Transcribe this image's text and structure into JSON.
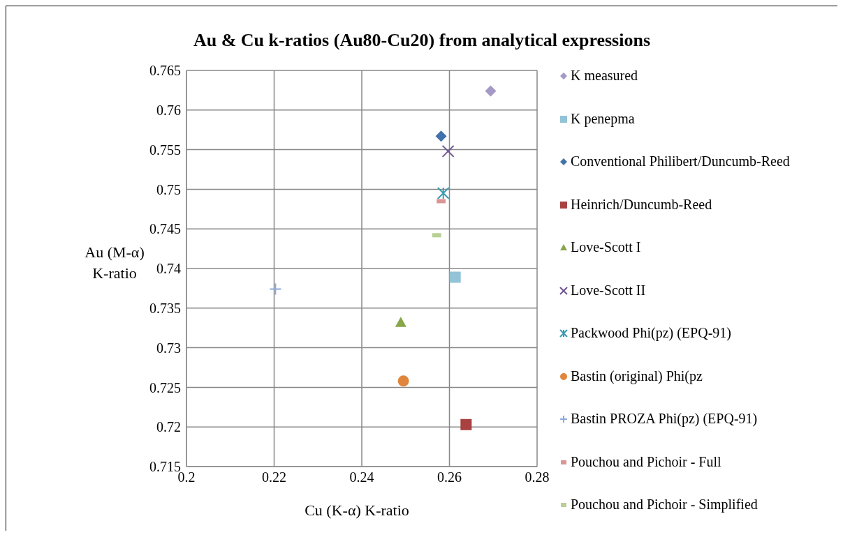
{
  "chart_data": {
    "type": "scatter",
    "title": "Au & Cu k-ratios (Au80-Cu20) from analytical expressions",
    "xlabel": "Cu (K-α) K-ratio",
    "ylabel": "Au (M-α) K-ratio",
    "xlim": [
      0.2,
      0.28
    ],
    "xticks": [
      0.2,
      0.22,
      0.24,
      0.26,
      0.28
    ],
    "ylim": [
      0.715,
      0.765
    ],
    "yticks": [
      0.715,
      0.72,
      0.725,
      0.73,
      0.735,
      0.74,
      0.745,
      0.75,
      0.755,
      0.76,
      0.765
    ],
    "grid": true,
    "legend": "right",
    "series": [
      {
        "name": "K measured",
        "color": "#a599c6",
        "marker": "diamond",
        "x": [
          0.2694
        ],
        "values": [
          0.7624
        ]
      },
      {
        "name": "K penepma",
        "color": "#93c3d6",
        "marker": "square",
        "x": [
          0.2613
        ],
        "values": [
          0.7389
        ]
      },
      {
        "name": "Conventional Philibert/Duncumb-Reed",
        "color": "#4272ab",
        "marker": "diamond",
        "x": [
          0.2581
        ],
        "values": [
          0.7567
        ]
      },
      {
        "name": "Heinrich/Duncumb-Reed",
        "color": "#a8413f",
        "marker": "square",
        "x": [
          0.2638
        ],
        "values": [
          0.7203
        ]
      },
      {
        "name": "Love-Scott I",
        "color": "#88a64a",
        "marker": "triangle",
        "x": [
          0.2489
        ],
        "values": [
          0.7332
        ]
      },
      {
        "name": "Love-Scott II",
        "color": "#6e5391",
        "marker": "x",
        "x": [
          0.2597
        ],
        "values": [
          0.7548
        ]
      },
      {
        "name": "Packwood Phi(pz) (EPQ-91)",
        "color": "#3d9bb0",
        "marker": "cross",
        "x": [
          0.2586
        ],
        "values": [
          0.7495
        ]
      },
      {
        "name": "Bastin (original) Phi(pz",
        "color": "#e0853a",
        "marker": "circle",
        "x": [
          0.2495
        ],
        "values": [
          0.7258
        ]
      },
      {
        "name": "Bastin PROZA Phi(pz) (EPQ-91)",
        "color": "#8ea8d8",
        "marker": "plus",
        "x": [
          0.2203
        ],
        "values": [
          0.7374
        ]
      },
      {
        "name": "Pouchou and Pichoir - Full",
        "color": "#da9594",
        "x": [
          0.2581
        ],
        "values": [
          0.7485
        ]
      },
      {
        "name": "Pouchou and Pichoir - Simplified",
        "color": "#b8d095",
        "x": [
          0.2571
        ],
        "values": [
          0.7442
        ]
      }
    ]
  }
}
